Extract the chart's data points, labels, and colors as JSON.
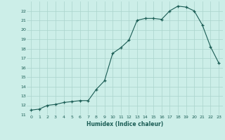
{
  "x": [
    0,
    1,
    2,
    3,
    4,
    5,
    6,
    7,
    8,
    9,
    10,
    11,
    12,
    13,
    14,
    15,
    16,
    17,
    18,
    19,
    20,
    21,
    22,
    23
  ],
  "y": [
    11.5,
    11.6,
    12.0,
    12.1,
    12.3,
    12.4,
    12.5,
    12.5,
    13.7,
    14.6,
    17.5,
    18.1,
    18.9,
    21.0,
    21.2,
    21.2,
    21.1,
    22.0,
    22.5,
    22.4,
    22.0,
    20.5,
    18.2,
    16.5
  ],
  "xlabel": "Humidex (Indice chaleur)",
  "xlim": [
    -0.5,
    23.5
  ],
  "ylim": [
    11,
    23
  ],
  "bg_color": "#cceee8",
  "grid_color": "#aad4cc",
  "line_color": "#1a5c54",
  "marker_color": "#1a5c54",
  "label_color": "#1a5c54",
  "tick_color": "#1a5c54",
  "yticks": [
    11,
    12,
    13,
    14,
    15,
    16,
    17,
    18,
    19,
    20,
    21,
    22
  ],
  "xticks": [
    0,
    1,
    2,
    3,
    4,
    5,
    6,
    7,
    8,
    9,
    10,
    11,
    12,
    13,
    14,
    15,
    16,
    17,
    18,
    19,
    20,
    21,
    22,
    23
  ]
}
